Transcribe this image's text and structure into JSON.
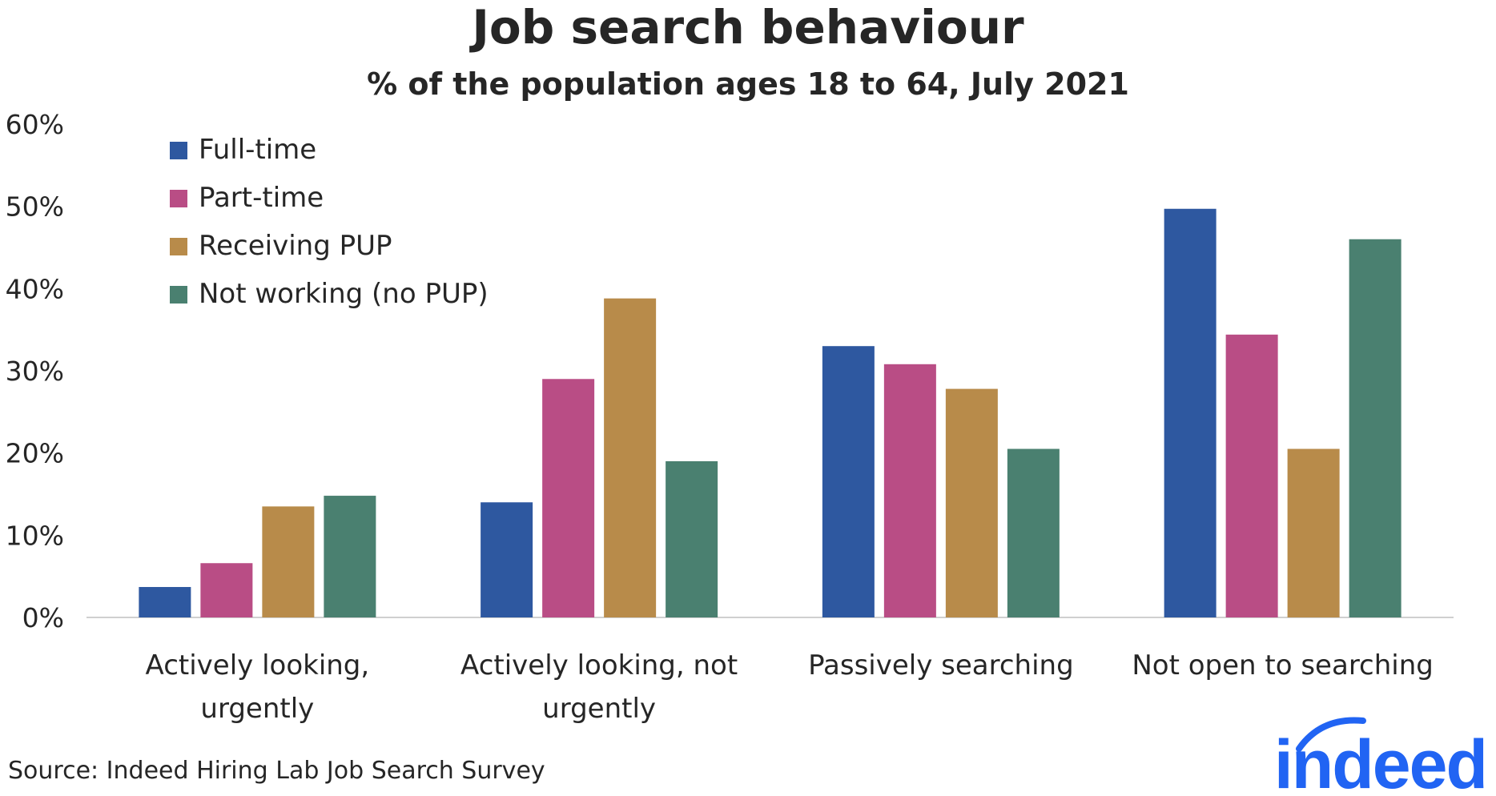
{
  "chart_data": {
    "type": "bar",
    "title": "Job search behaviour",
    "subtitle": "% of the population ages 18 to 64, July 2021",
    "categories": [
      [
        "Actively looking,",
        "urgently"
      ],
      [
        "Actively looking, not",
        "urgently"
      ],
      [
        "Passively searching"
      ],
      [
        "Not open to searching"
      ]
    ],
    "series": [
      {
        "name": "Full-time",
        "color": "#2e58a0",
        "values": [
          3.7,
          14.0,
          33.0,
          49.7
        ]
      },
      {
        "name": "Part-time",
        "color": "#b94d85",
        "values": [
          6.6,
          29.0,
          30.8,
          34.4
        ]
      },
      {
        "name": "Receiving PUP",
        "color": "#b88b4a",
        "values": [
          13.5,
          38.8,
          27.8,
          20.5
        ]
      },
      {
        "name": "Not working (no PUP)",
        "color": "#4a8070",
        "values": [
          14.8,
          19.0,
          20.5,
          46.0
        ]
      }
    ],
    "ylim": [
      0,
      60
    ],
    "yticks": [
      "0%",
      "10%",
      "20%",
      "30%",
      "40%",
      "50%",
      "60%"
    ],
    "ytick_values": [
      0,
      10,
      20,
      30,
      40,
      50,
      60
    ],
    "grid": false,
    "legend_position": "top-left"
  },
  "source": "Source: Indeed Hiring Lab Job Search Survey",
  "logo": {
    "text": "indeed",
    "color": "#2164f3"
  }
}
